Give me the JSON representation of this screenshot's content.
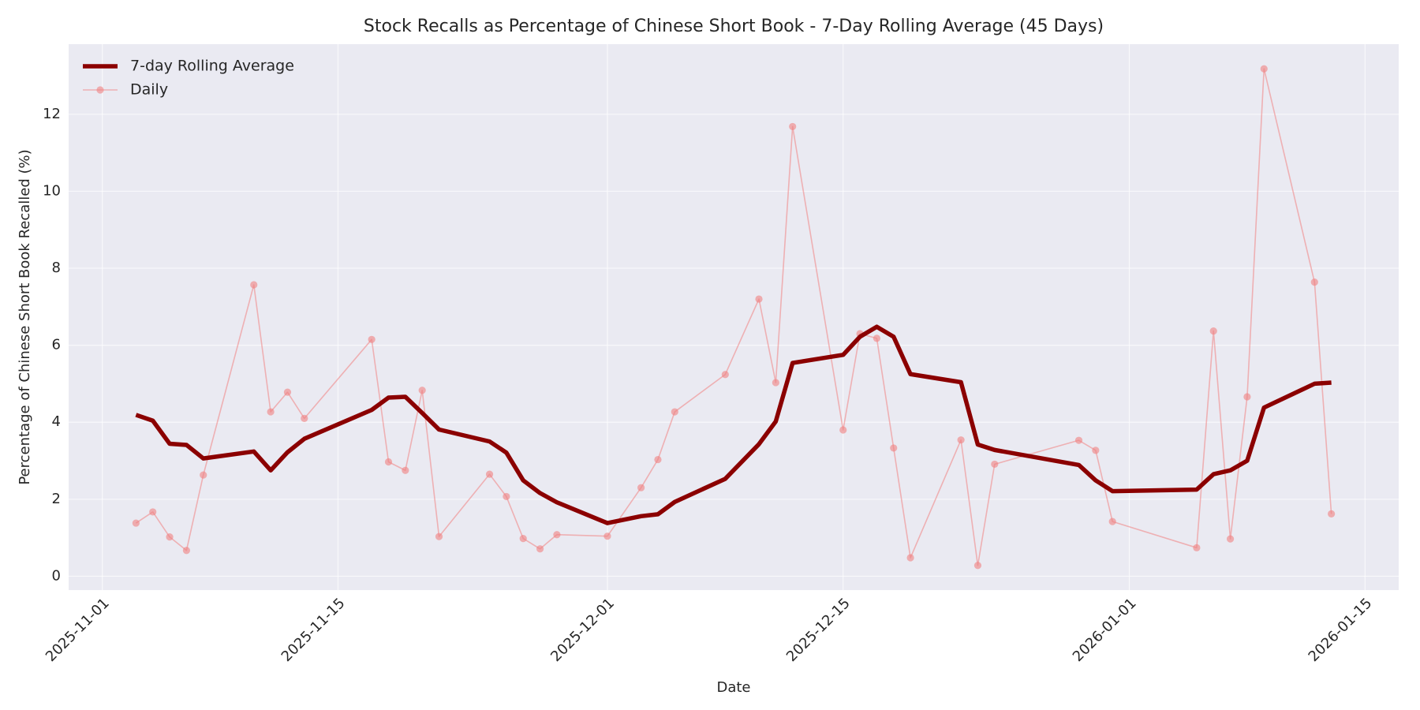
{
  "chart_data": {
    "type": "line",
    "title": "Stock Recalls as Percentage of Chinese Short Book - 7-Day Rolling Average (45 Days)",
    "xlabel": "Date",
    "ylabel": "Percentage of Chinese Short Book Recalled (%)",
    "x": [
      "2025-11-03",
      "2025-11-04",
      "2025-11-05",
      "2025-11-06",
      "2025-11-07",
      "2025-11-10",
      "2025-11-11",
      "2025-11-12",
      "2025-11-13",
      "2025-11-17",
      "2025-11-18",
      "2025-11-19",
      "2025-11-20",
      "2025-11-21",
      "2025-11-24",
      "2025-11-25",
      "2025-11-26",
      "2025-11-27",
      "2025-11-28",
      "2025-12-01",
      "2025-12-03",
      "2025-12-04",
      "2025-12-05",
      "2025-12-08",
      "2025-12-10",
      "2025-12-11",
      "2025-12-12",
      "2025-12-15",
      "2025-12-16",
      "2025-12-17",
      "2025-12-18",
      "2025-12-19",
      "2025-12-22",
      "2025-12-23",
      "2025-12-24",
      "2025-12-29",
      "2025-12-30",
      "2025-12-31",
      "2026-01-05",
      "2026-01-06",
      "2026-01-07",
      "2026-01-08",
      "2026-01-09",
      "2026-01-12",
      "2026-01-13"
    ],
    "series": [
      {
        "name": "7-day Rolling Average",
        "color": "#8b0000",
        "values": [
          4.19,
          4.04,
          3.44,
          3.41,
          3.06,
          3.24,
          2.75,
          3.22,
          3.57,
          4.32,
          4.64,
          4.66,
          4.24,
          3.81,
          3.5,
          3.21,
          2.49,
          2.16,
          1.92,
          1.38,
          1.56,
          1.61,
          1.93,
          2.53,
          3.43,
          4.02,
          5.54,
          5.75,
          6.22,
          6.48,
          6.22,
          5.25,
          5.04,
          3.42,
          3.28,
          2.89,
          2.49,
          2.21,
          2.25,
          2.65,
          2.75,
          3.0,
          4.38,
          5.0,
          5.03
        ]
      },
      {
        "name": "Daily",
        "color": "#f08080",
        "marker": true,
        "values": [
          1.38,
          1.67,
          1.02,
          0.67,
          2.63,
          7.57,
          4.27,
          4.78,
          4.1,
          6.15,
          2.97,
          2.75,
          4.83,
          1.03,
          2.65,
          2.07,
          0.98,
          0.71,
          1.08,
          1.04,
          2.3,
          3.03,
          4.27,
          5.24,
          7.2,
          5.03,
          11.68,
          3.8,
          6.3,
          6.18,
          3.33,
          0.48,
          3.54,
          0.28,
          2.91,
          3.53,
          3.27,
          1.42,
          0.74,
          6.37,
          0.97,
          4.66,
          13.18,
          7.64,
          1.62
        ]
      }
    ],
    "xlim": [
      "2025-10-30",
      "2026-01-17"
    ],
    "xticks": [
      "2025-11-01",
      "2025-11-15",
      "2025-12-01",
      "2025-12-15",
      "2026-01-01",
      "2026-01-15"
    ],
    "ylim": [
      -0.36,
      13.82
    ],
    "yticks": [
      0,
      2,
      4,
      6,
      8,
      10,
      12
    ],
    "grid": true,
    "legend": "upper left"
  }
}
